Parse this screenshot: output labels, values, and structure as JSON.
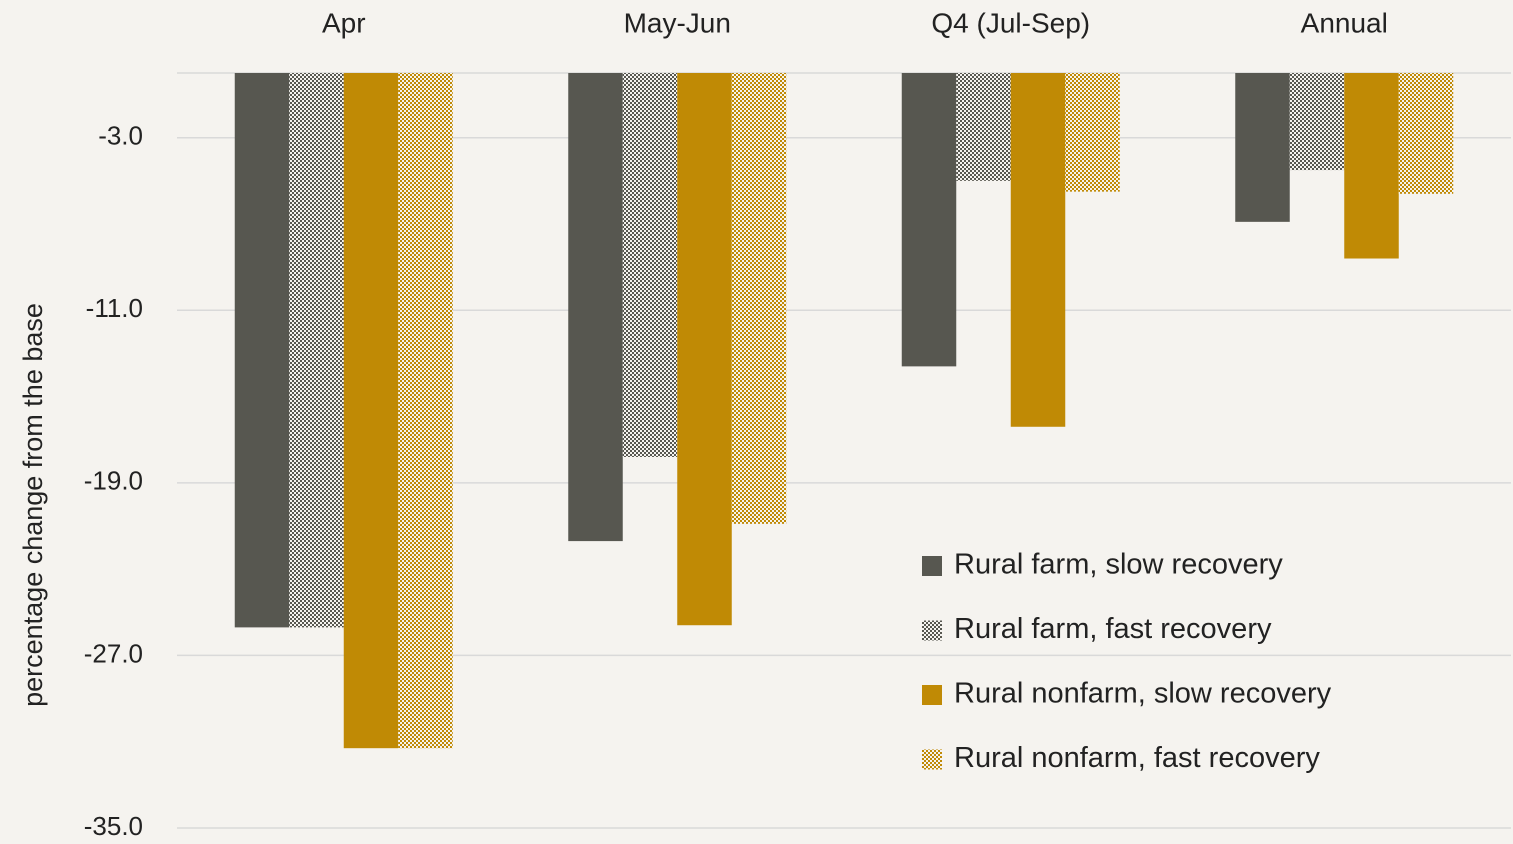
{
  "chart_data": {
    "type": "bar",
    "y_label": "percentage change from the base",
    "categories": [
      "Apr",
      "May-Jun",
      "Q4 (Jul-Sep)",
      "Annual"
    ],
    "series": [
      {
        "name": "Rural farm, slow recovery",
        "color": "#575750",
        "values": [
          -25.7,
          -21.7,
          -13.6,
          -6.9
        ]
      },
      {
        "name": "Rural farm, fast recovery",
        "color": "#575750",
        "pattern": "checker",
        "values": [
          -25.7,
          -17.8,
          -5.0,
          -4.5
        ]
      },
      {
        "name": "Rural nonfarm, slow recovery",
        "color": "#c08a05",
        "values": [
          -31.3,
          -25.6,
          -16.4,
          -8.6
        ]
      },
      {
        "name": "Rural nonfarm, fast recovery",
        "color": "#c08a05",
        "pattern": "checker",
        "values": [
          -31.3,
          -20.9,
          -5.5,
          -5.6
        ]
      }
    ],
    "ylim": [
      -35,
      0
    ],
    "yticks": [
      {
        "value": -3,
        "label": "-3.0"
      },
      {
        "value": -11,
        "label": "-11.0"
      },
      {
        "value": -19,
        "label": "-19.0"
      },
      {
        "value": -27,
        "label": "-27.0"
      },
      {
        "value": -35,
        "label": "-35.0"
      }
    ],
    "grid": true,
    "legend": "lower right"
  }
}
